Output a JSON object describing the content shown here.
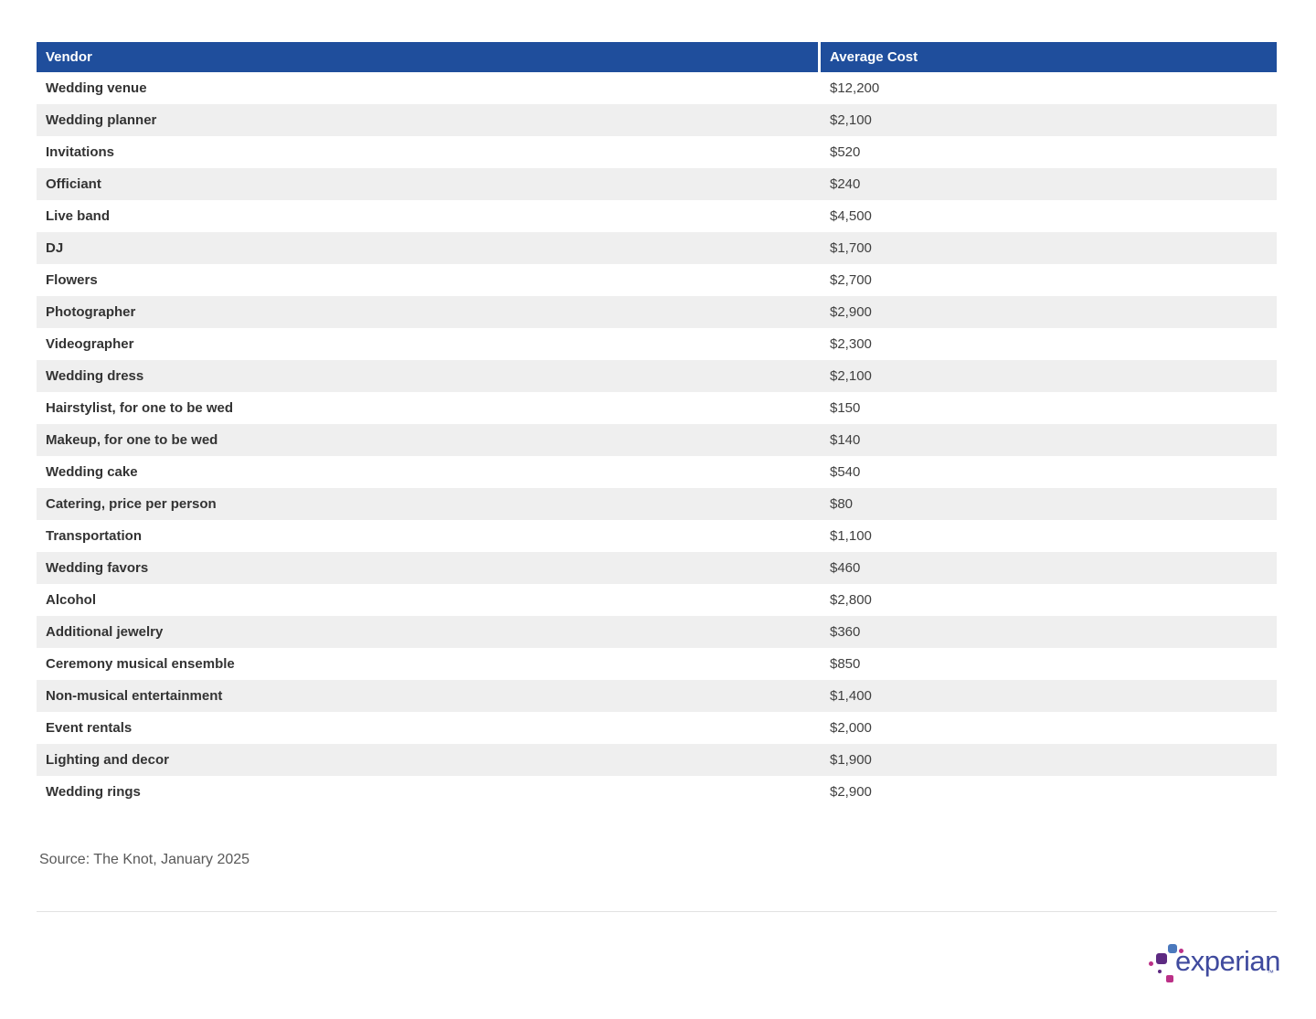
{
  "table": {
    "headers": {
      "vendor": "Vendor",
      "cost": "Average Cost"
    },
    "rows": [
      {
        "vendor": "Wedding venue",
        "cost": "$12,200"
      },
      {
        "vendor": "Wedding planner",
        "cost": "$2,100"
      },
      {
        "vendor": "Invitations",
        "cost": "$520"
      },
      {
        "vendor": "Officiant",
        "cost": "$240"
      },
      {
        "vendor": "Live band",
        "cost": "$4,500"
      },
      {
        "vendor": "DJ",
        "cost": "$1,700"
      },
      {
        "vendor": "Flowers",
        "cost": "$2,700"
      },
      {
        "vendor": "Photographer",
        "cost": "$2,900"
      },
      {
        "vendor": "Videographer",
        "cost": "$2,300"
      },
      {
        "vendor": "Wedding dress",
        "cost": "$2,100"
      },
      {
        "vendor": "Hairstylist, for one to be wed",
        "cost": "$150"
      },
      {
        "vendor": "Makeup, for one to be wed",
        "cost": "$140"
      },
      {
        "vendor": "Wedding cake",
        "cost": "$540"
      },
      {
        "vendor": "Catering, price per person",
        "cost": "$80"
      },
      {
        "vendor": "Transportation",
        "cost": "$1,100"
      },
      {
        "vendor": "Wedding favors",
        "cost": "$460"
      },
      {
        "vendor": "Alcohol",
        "cost": "$2,800"
      },
      {
        "vendor": "Additional jewelry",
        "cost": "$360"
      },
      {
        "vendor": "Ceremony musical ensemble",
        "cost": "$850"
      },
      {
        "vendor": "Non-musical entertainment",
        "cost": "$1,400"
      },
      {
        "vendor": "Event rentals",
        "cost": "$2,000"
      },
      {
        "vendor": "Lighting and decor",
        "cost": "$1,900"
      },
      {
        "vendor": "Wedding rings",
        "cost": "$2,900"
      }
    ]
  },
  "source": "Source: The Knot, January 2025",
  "logo": {
    "text": "experian",
    "tm": "™"
  },
  "colors": {
    "header_blue": "#1f4e9c",
    "row_alt": "#efefef",
    "logo_blue": "#3f4a9e",
    "dot_blue": "#4b79bd",
    "dot_purple": "#5d2a82",
    "dot_magenta": "#bb3087"
  },
  "chart_data": {
    "type": "table",
    "columns": [
      "Vendor",
      "Average Cost"
    ],
    "categories": [
      "Wedding venue",
      "Wedding planner",
      "Invitations",
      "Officiant",
      "Live band",
      "DJ",
      "Flowers",
      "Photographer",
      "Videographer",
      "Wedding dress",
      "Hairstylist, for one to be wed",
      "Makeup, for one to be wed",
      "Wedding cake",
      "Catering, price per person",
      "Transportation",
      "Wedding favors",
      "Alcohol",
      "Additional jewelry",
      "Ceremony musical ensemble",
      "Non-musical entertainment",
      "Event rentals",
      "Lighting and decor",
      "Wedding rings"
    ],
    "values": [
      12200,
      2100,
      520,
      240,
      4500,
      1700,
      2700,
      2900,
      2300,
      2100,
      150,
      140,
      540,
      80,
      1100,
      460,
      2800,
      360,
      850,
      1400,
      2000,
      1900,
      2900
    ],
    "title": "",
    "source": "Source: The Knot, January 2025"
  }
}
